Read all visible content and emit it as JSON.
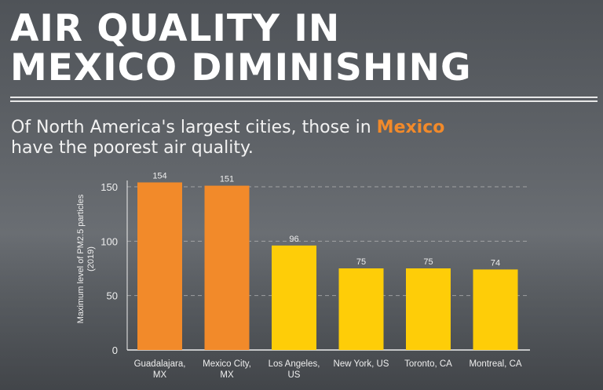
{
  "header": {
    "title_line1": "AIR QUALITY IN",
    "title_line2": "MEXICO DIMINISHING",
    "subtitle_pre": "Of North America's largest cities, those in ",
    "subtitle_accent": "Mexico",
    "subtitle_post": "have the poorest air quality."
  },
  "colors": {
    "mexico": "#f28a2a",
    "other": "#fecd08",
    "accent": "#f28a2a"
  },
  "chart_data": {
    "type": "bar",
    "categories": [
      [
        "Guadalajara,",
        "MX"
      ],
      [
        "Mexico City,",
        "MX"
      ],
      [
        "Los Angeles,",
        "US"
      ],
      [
        "New York, US"
      ],
      [
        "Toronto, CA"
      ],
      [
        "Montreal, CA"
      ]
    ],
    "values": [
      154,
      151,
      96,
      75,
      75,
      74
    ],
    "country": [
      "MX",
      "MX",
      "US",
      "US",
      "CA",
      "CA"
    ],
    "ylabel_line1": "Maximum level of PM2.5 particles",
    "ylabel_line2": "(2019)",
    "yticks": [
      0,
      50,
      100,
      150
    ],
    "ylim": [
      0,
      150
    ],
    "grid": true,
    "data_labels": true
  }
}
